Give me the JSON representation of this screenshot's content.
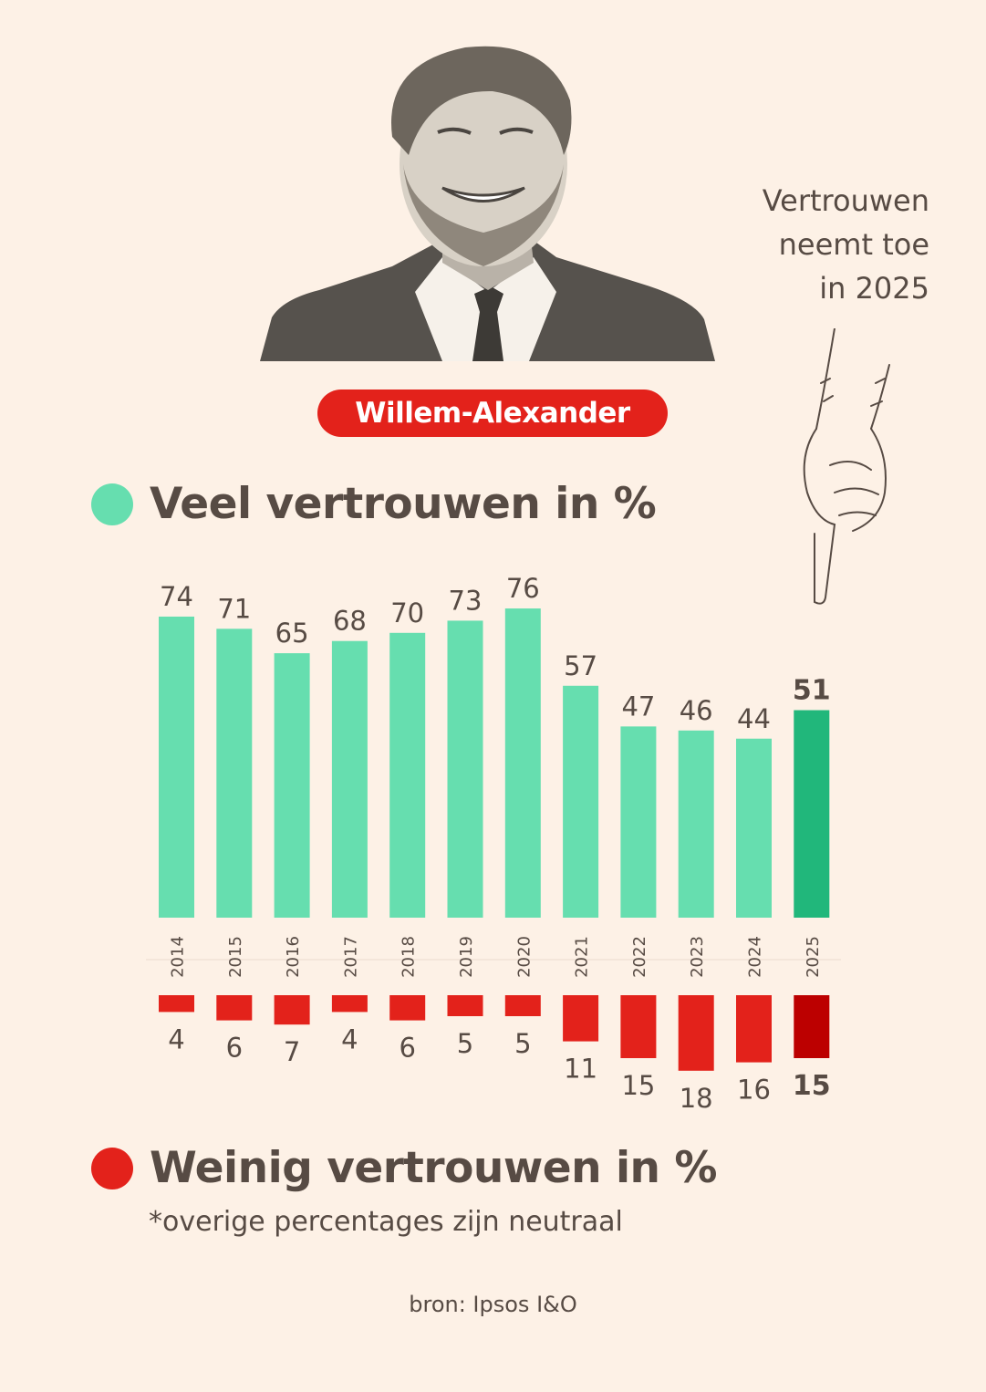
{
  "person": {
    "name": "Willem-Alexander"
  },
  "annotation": {
    "lines": [
      "Vertrouwen",
      "neemt toe",
      "in 2025"
    ]
  },
  "legend": {
    "high_label": "Veel vertrouwen in %",
    "low_label": "Weinig vertrouwen in %"
  },
  "footnote": "*overige percentages zijn neutraal",
  "source": "bron: Ipsos I&O",
  "colors": {
    "background": "#fdf1e6",
    "high": "#66deaf",
    "high_highlight": "#21b77b",
    "low": "#e3221b",
    "low_highlight": "#bc0000",
    "text": "#574b44"
  },
  "chart_data": {
    "type": "bar",
    "categories": [
      "2014",
      "2015",
      "2016",
      "2017",
      "2018",
      "2019",
      "2020",
      "2021",
      "2022",
      "2023",
      "2024",
      "2025"
    ],
    "series": [
      {
        "name": "Veel vertrouwen in %",
        "values": [
          74,
          71,
          65,
          68,
          70,
          73,
          76,
          57,
          47,
          46,
          44,
          51
        ]
      },
      {
        "name": "Weinig vertrouwen in %",
        "values": [
          4,
          6,
          7,
          4,
          6,
          5,
          5,
          11,
          15,
          18,
          16,
          15
        ]
      }
    ],
    "highlight_category": "2025",
    "legend_position": "top and bottom",
    "grid": false
  }
}
